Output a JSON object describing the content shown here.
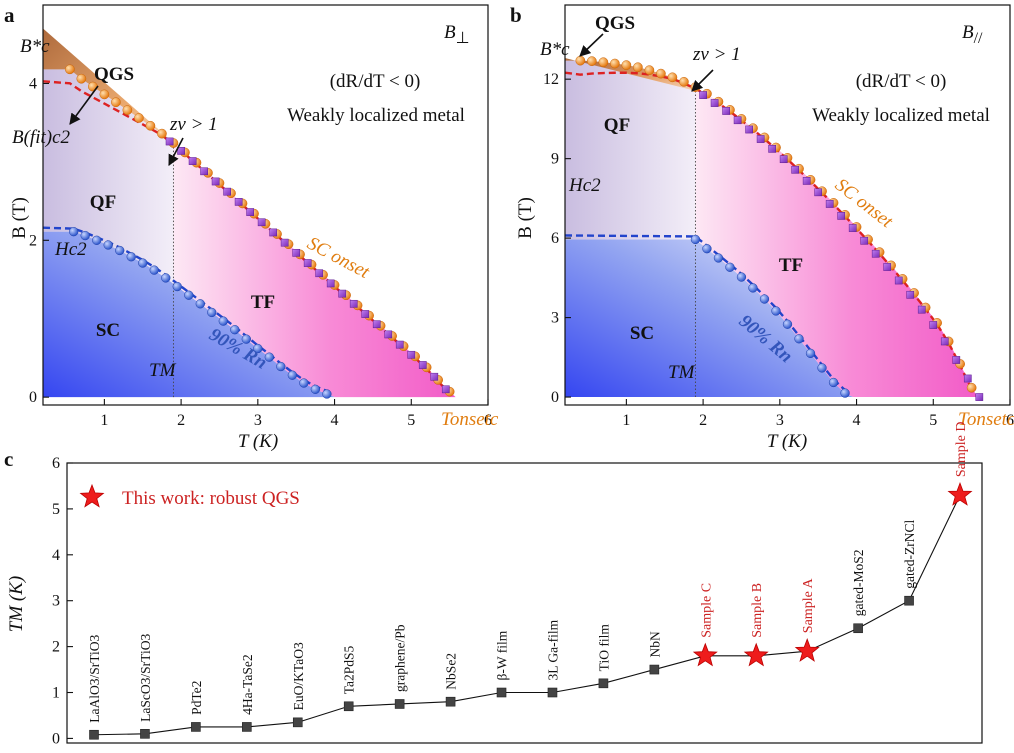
{
  "panels": {
    "a": {
      "letter": "a",
      "field_label": "B⊥",
      "field_main": "B",
      "field_sub": "⊥",
      "xlabel": "T (K)",
      "ylabel": "B (T)",
      "xticks": [
        "1",
        "2",
        "3",
        "4",
        "5",
        "6"
      ],
      "yticks": [
        "0",
        "2",
        "4"
      ],
      "condition": "(dR/dT < 0)",
      "phase_text": "Weakly localized metal",
      "labels": {
        "qgs": "QGS",
        "qf": "QF",
        "tf": "TF",
        "sc": "SC",
        "sc_onset": "SC onset",
        "percent90": "90% Rn",
        "zv": "zν > 1",
        "tm": "TM",
        "bc_star": "B*c",
        "bc2_fit": "B(fit)c2",
        "hc2": "Hc2",
        "tc_onset": "Tonsetc"
      }
    },
    "b": {
      "letter": "b",
      "field_label": "B//",
      "field_main": "B",
      "field_sub": "//",
      "xlabel": "T (K)",
      "ylabel": "B (T)",
      "xticks": [
        "1",
        "2",
        "3",
        "4",
        "5",
        "6"
      ],
      "yticks": [
        "0",
        "3",
        "6",
        "9",
        "12"
      ],
      "condition": "(dR/dT < 0)",
      "phase_text": "Weakly localized metal",
      "labels": {
        "qgs": "QGS",
        "qf": "QF",
        "tf": "TF",
        "sc": "SC",
        "sc_onset": "SC onset",
        "percent90": "90% Rn",
        "zv": "zν > 1",
        "tm": "TM",
        "bc_star": "B*c",
        "hc2": "Hc2",
        "tc_onset": "Tonsetc"
      }
    },
    "c": {
      "letter": "c",
      "ylabel": "TM (K)",
      "yticks": [
        "0",
        "1",
        "2",
        "3",
        "4",
        "5",
        "6"
      ],
      "legend": "This work: robust QGS"
    }
  },
  "colors": {
    "orange": "#ee8a1c",
    "purple": "#8a3fc4",
    "blue": "#3d63d6",
    "red_dashed": "#dd2222",
    "blue_dashed": "#2244cc",
    "star_red": "#ee1c1c",
    "sample_text": "#cc2222",
    "sc_onset_text": "#e07d10",
    "pct_text": "#3355bb"
  },
  "chart_data": [
    {
      "type": "scatter",
      "panel": "a",
      "title": "B⊥",
      "xlabel": "T (K)",
      "ylabel": "B (T)",
      "xlim": [
        0.2,
        6.0
      ],
      "ylim": [
        -0.1,
        5.0
      ],
      "series": [
        {
          "name": "SC onset (Tc onset)",
          "marker": "circle",
          "color": "orange",
          "x": [
            0.55,
            0.7,
            0.85,
            1.0,
            1.15,
            1.3,
            1.45,
            1.6,
            1.75,
            1.9,
            2.05,
            2.2,
            2.35,
            2.5,
            2.65,
            2.8,
            2.95,
            3.1,
            3.25,
            3.4,
            3.55,
            3.7,
            3.85,
            4.0,
            4.15,
            4.3,
            4.45,
            4.6,
            4.75,
            4.9,
            5.05,
            5.2,
            5.35,
            5.5
          ],
          "y": [
            4.18,
            4.06,
            3.96,
            3.86,
            3.76,
            3.66,
            3.56,
            3.46,
            3.36,
            3.24,
            3.12,
            2.99,
            2.86,
            2.73,
            2.6,
            2.47,
            2.34,
            2.21,
            2.08,
            1.95,
            1.82,
            1.69,
            1.56,
            1.43,
            1.3,
            1.17,
            1.04,
            0.91,
            0.78,
            0.65,
            0.52,
            0.38,
            0.22,
            0.07
          ]
        },
        {
          "name": "zν > 1 onset",
          "marker": "square",
          "color": "purple",
          "x": [
            1.85,
            2.0,
            2.15,
            2.3,
            2.45,
            2.6,
            2.75,
            2.9,
            3.05,
            3.2,
            3.35,
            3.5,
            3.65,
            3.8,
            3.95,
            4.1,
            4.25,
            4.4,
            4.55,
            4.7,
            4.85,
            5.0,
            5.15,
            5.3,
            5.45
          ],
          "y": [
            3.26,
            3.14,
            3.01,
            2.88,
            2.75,
            2.62,
            2.49,
            2.36,
            2.23,
            2.1,
            1.97,
            1.84,
            1.71,
            1.58,
            1.45,
            1.32,
            1.19,
            1.06,
            0.93,
            0.8,
            0.67,
            0.54,
            0.41,
            0.26,
            0.1
          ]
        },
        {
          "name": "90% Rn",
          "marker": "circle",
          "color": "blue",
          "x": [
            0.6,
            0.75,
            0.9,
            1.05,
            1.2,
            1.35,
            1.5,
            1.65,
            1.8,
            1.95,
            2.1,
            2.25,
            2.4,
            2.55,
            2.7,
            2.85,
            3.0,
            3.15,
            3.3,
            3.45,
            3.6,
            3.75,
            3.9
          ],
          "y": [
            2.11,
            2.06,
            2.0,
            1.94,
            1.87,
            1.79,
            1.71,
            1.62,
            1.52,
            1.41,
            1.3,
            1.19,
            1.08,
            0.97,
            0.86,
            0.74,
            0.62,
            0.51,
            0.39,
            0.28,
            0.18,
            0.1,
            0.04
          ]
        }
      ],
      "fits": [
        {
          "name": "B(fit)c2",
          "style": "dashed",
          "color": "red_dashed"
        },
        {
          "name": "Hc2",
          "style": "dashed",
          "color": "blue_dashed"
        }
      ],
      "TM": 1.9,
      "Bc_star": 4.7
    },
    {
      "type": "scatter",
      "panel": "b",
      "title": "B//",
      "xlabel": "T (K)",
      "ylabel": "B (T)",
      "xlim": [
        0.2,
        6.0
      ],
      "ylim": [
        -0.3,
        14.8
      ],
      "series": [
        {
          "name": "SC onset (Tc onset)",
          "marker": "circle",
          "color": "orange",
          "x": [
            0.4,
            0.55,
            0.7,
            0.85,
            1.0,
            1.15,
            1.3,
            1.45,
            1.6,
            1.75,
            1.9,
            2.05,
            2.2,
            2.35,
            2.5,
            2.65,
            2.8,
            2.95,
            3.1,
            3.25,
            3.4,
            3.55,
            3.7,
            3.85,
            4.0,
            4.15,
            4.3,
            4.45,
            4.6,
            4.75,
            4.9,
            5.05,
            5.2,
            5.35,
            5.5
          ],
          "y": [
            12.7,
            12.68,
            12.64,
            12.59,
            12.53,
            12.45,
            12.34,
            12.21,
            12.07,
            11.9,
            11.7,
            11.45,
            11.15,
            10.84,
            10.5,
            10.15,
            9.8,
            9.42,
            9.03,
            8.62,
            8.2,
            7.77,
            7.33,
            6.88,
            6.42,
            5.95,
            5.47,
            4.97,
            4.46,
            3.93,
            3.38,
            2.8,
            2.1,
            1.25,
            0.35
          ]
        },
        {
          "name": "zν > 1 onset",
          "marker": "square",
          "color": "purple",
          "x": [
            2.0,
            2.15,
            2.3,
            2.45,
            2.6,
            2.75,
            2.9,
            3.05,
            3.2,
            3.35,
            3.5,
            3.65,
            3.8,
            3.95,
            4.1,
            4.25,
            4.4,
            4.55,
            4.7,
            4.85,
            5.0,
            5.15,
            5.3,
            5.45,
            5.6
          ],
          "y": [
            11.4,
            11.1,
            10.8,
            10.45,
            10.1,
            9.74,
            9.37,
            8.98,
            8.58,
            8.16,
            7.73,
            7.29,
            6.84,
            6.38,
            5.9,
            5.41,
            4.91,
            4.4,
            3.86,
            3.3,
            2.72,
            2.1,
            1.4,
            0.7,
            0.0
          ]
        },
        {
          "name": "90% Rn",
          "marker": "circle",
          "color": "blue",
          "x": [
            1.9,
            2.05,
            2.2,
            2.35,
            2.5,
            2.65,
            2.8,
            2.95,
            3.1,
            3.25,
            3.4,
            3.55,
            3.7,
            3.85
          ],
          "y": [
            5.95,
            5.6,
            5.25,
            4.9,
            4.53,
            4.12,
            3.7,
            3.25,
            2.75,
            2.2,
            1.65,
            1.1,
            0.55,
            0.15
          ]
        }
      ],
      "fits": [
        {
          "name": "Bc upper (dashed)",
          "style": "dashed",
          "color": "red_dashed"
        },
        {
          "name": "Hc2",
          "style": "dashed",
          "color": "blue_dashed"
        }
      ],
      "TM": 1.9,
      "Bc_star": 12.8
    },
    {
      "type": "line",
      "panel": "c",
      "ylabel": "TM (K)",
      "ylim": [
        -0.1,
        6.0
      ],
      "categories": [
        "LaAlO3/SrTiO3",
        "LaScO3/SrTiO3",
        "PdTe2",
        "4Ha-TaSe2",
        "EuO/KTaO3",
        "Ta2PdS5",
        "graphene/Pb",
        "NbSe2",
        "β-W film",
        "3L Ga-film",
        "TiO film",
        "NbN",
        "Sample C",
        "Sample B",
        "Sample A",
        "gated-MoS2",
        "gated-ZrNCl",
        "Sample D"
      ],
      "values": [
        0.08,
        0.1,
        0.25,
        0.25,
        0.35,
        0.7,
        0.75,
        0.8,
        1.0,
        1.0,
        1.2,
        1.5,
        1.8,
        1.8,
        1.9,
        2.4,
        3.0,
        5.3
      ],
      "this_work": [
        false,
        false,
        false,
        false,
        false,
        false,
        false,
        false,
        false,
        false,
        false,
        false,
        true,
        true,
        true,
        false,
        false,
        true
      ],
      "legend": "This work: robust QGS"
    }
  ]
}
